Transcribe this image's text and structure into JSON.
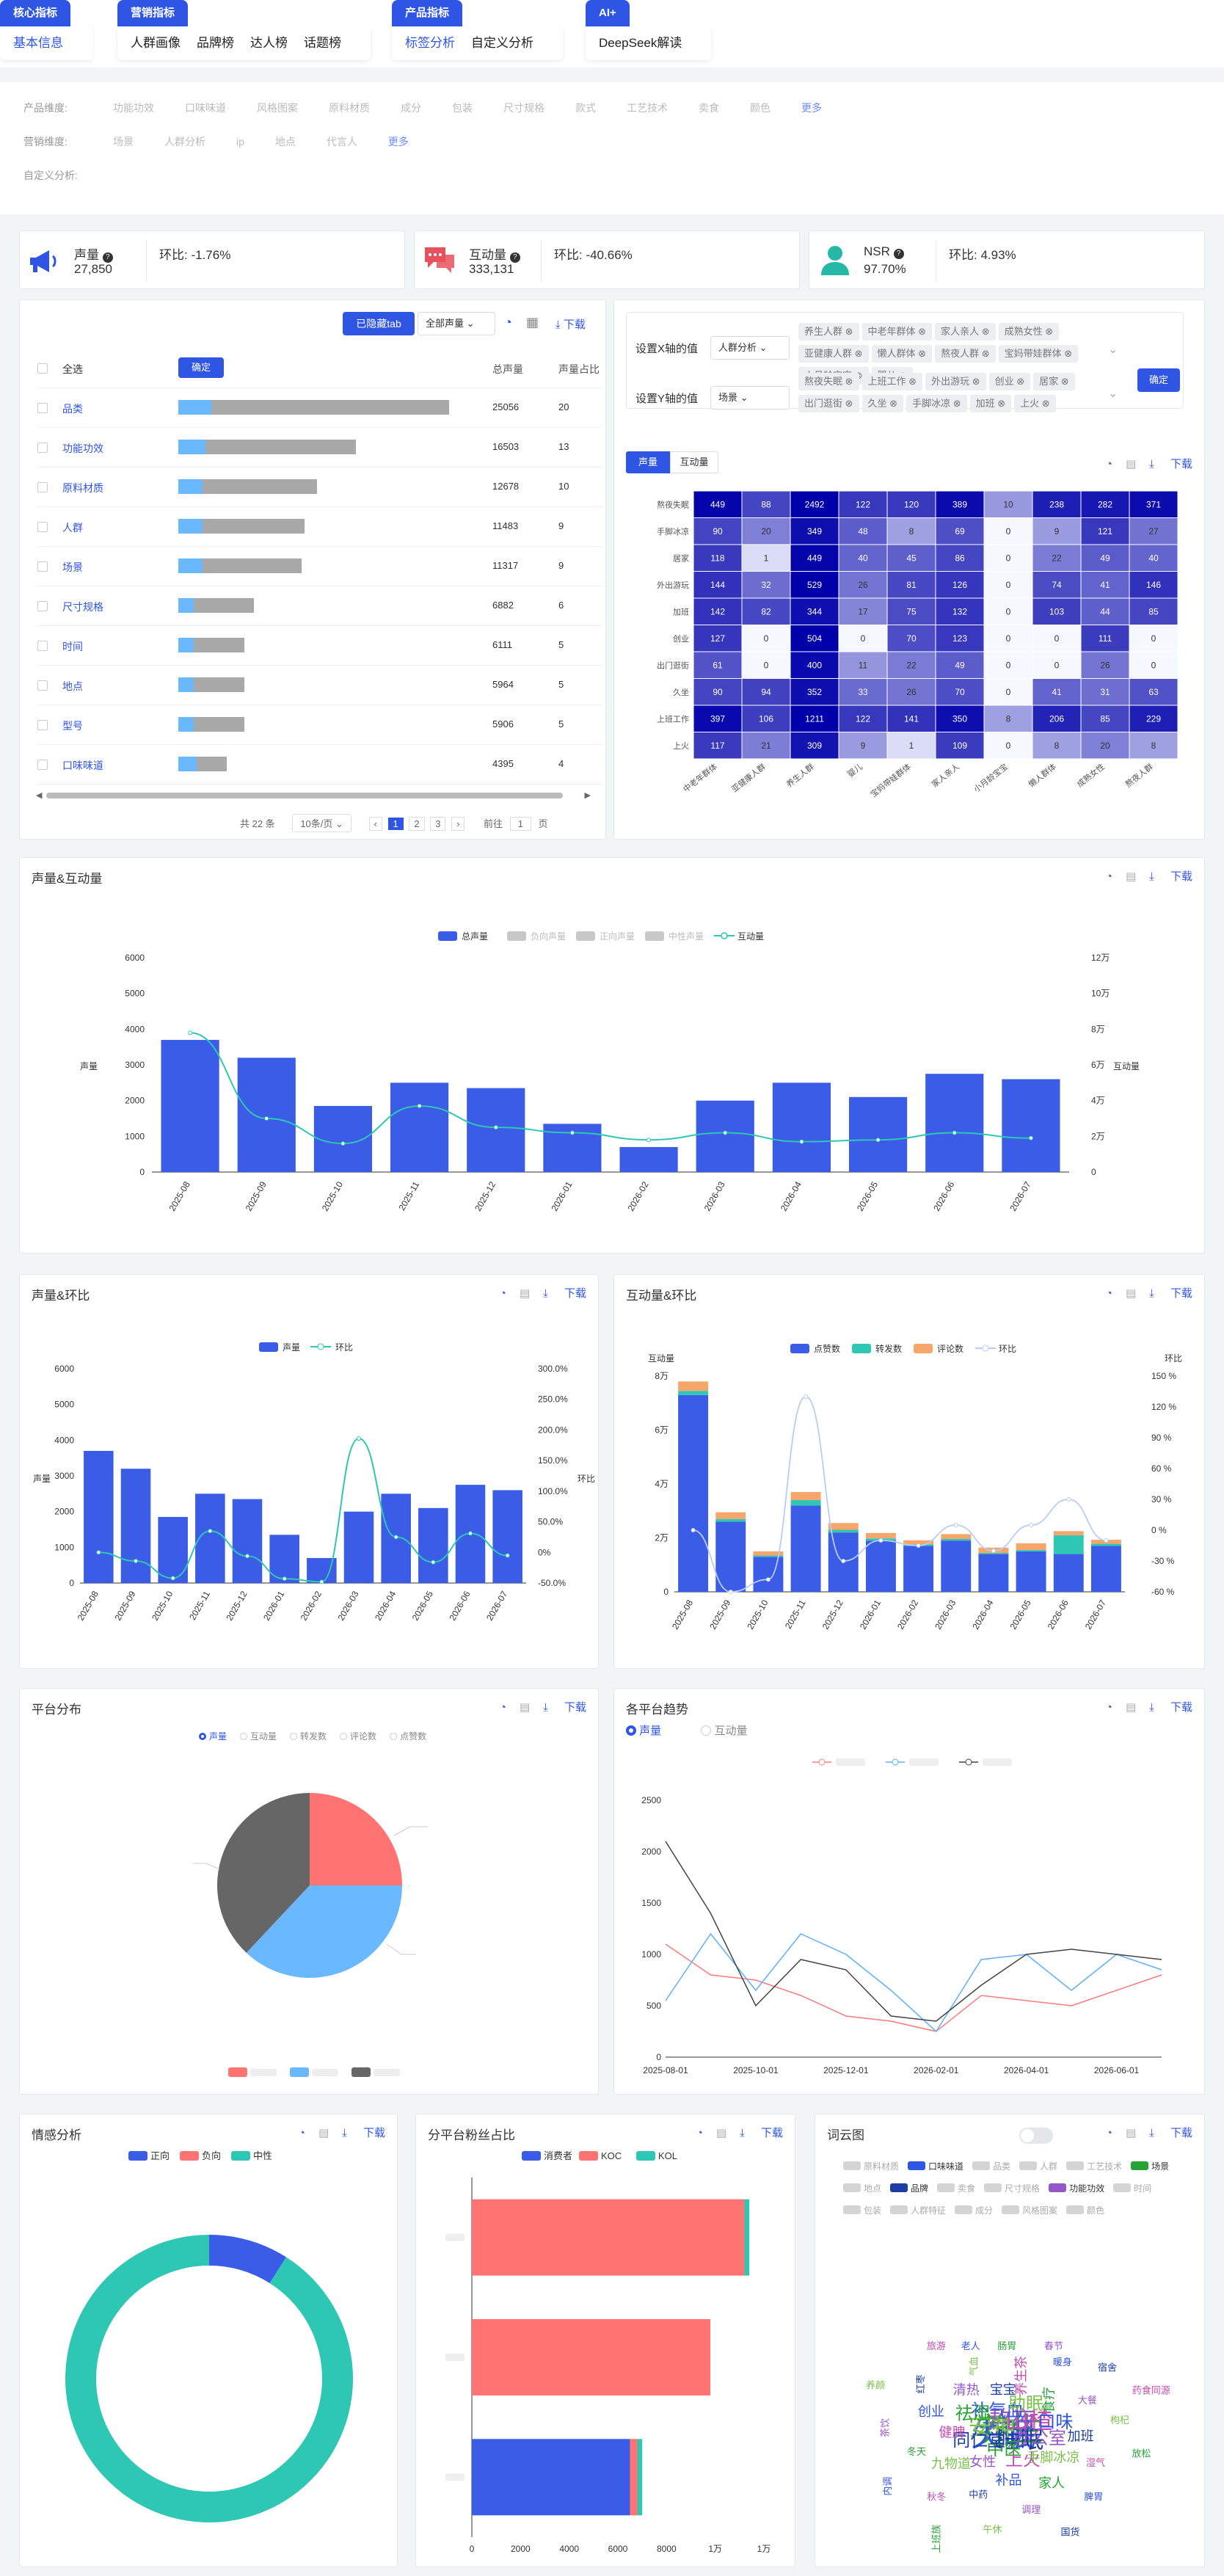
{
  "nav": {
    "groups": [
      {
        "label": "核心指标",
        "items": [
          "基本信息"
        ],
        "active": 0
      },
      {
        "label": "营销指标",
        "items": [
          "人群画像",
          "品牌榜",
          "达人榜",
          "话题榜"
        ],
        "active": -1
      },
      {
        "label": "产品指标",
        "items": [
          "标签分析",
          "自定义分析"
        ],
        "active": 0
      },
      {
        "label": "AI+",
        "items": [
          "DeepSeek解读"
        ],
        "active": -1
      }
    ]
  },
  "filters": {
    "product_label": "产品维度:",
    "product_items": [
      "功能功效",
      "口味味道",
      "风格图案",
      "原料材质",
      "成分",
      "包装",
      "尺寸规格",
      "款式",
      "工艺技术",
      "卖食",
      "颜色"
    ],
    "marketing_label": "营销维度:",
    "marketing_items": [
      "场景",
      "人群分析",
      "ip",
      "地点",
      "代言人"
    ],
    "custom_label": "自定义分析:",
    "more": "更多"
  },
  "kpis": [
    {
      "label": "声量",
      "value": "27,850",
      "mom": "环比: -1.76%",
      "icon": "megaphone-icon"
    },
    {
      "label": "互动量",
      "value": "333,131",
      "mom": "环比: -40.66%",
      "icon": "chat-bubble-icon"
    },
    {
      "label": "NSR",
      "value": "97.70%",
      "mom": "环比: 4.93%",
      "icon": "person-icon"
    }
  ],
  "toolbar": {
    "hidden_tab": "已隐藏tab",
    "all_volume": "全部声量",
    "download": "下载",
    "confirm": "确定"
  },
  "table": {
    "headers": {
      "select_all": "全选",
      "volume": "总声量",
      "share": "声量占比"
    },
    "rows": [
      {
        "name": "品类",
        "volume": "25056",
        "share": "20",
        "blue": 0.11,
        "grey": 0.9
      },
      {
        "name": "功能功效",
        "volume": "16503",
        "share": "13",
        "blue": 0.09,
        "grey": 0.59
      },
      {
        "name": "原料材质",
        "volume": "12678",
        "share": "10",
        "blue": 0.08,
        "grey": 0.46
      },
      {
        "name": "人群",
        "volume": "11483",
        "share": "9",
        "blue": 0.08,
        "grey": 0.42
      },
      {
        "name": "场景",
        "volume": "11317",
        "share": "9",
        "blue": 0.08,
        "grey": 0.41
      },
      {
        "name": "尺寸规格",
        "volume": "6882",
        "share": "6",
        "blue": 0.05,
        "grey": 0.25
      },
      {
        "name": "时间",
        "volume": "6111",
        "share": "5",
        "blue": 0.05,
        "grey": 0.22
      },
      {
        "name": "地点",
        "volume": "5964",
        "share": "5",
        "blue": 0.05,
        "grey": 0.22
      },
      {
        "name": "型号",
        "volume": "5906",
        "share": "5",
        "blue": 0.05,
        "grey": 0.22
      },
      {
        "name": "口味味道",
        "volume": "4395",
        "share": "4",
        "blue": 0.06,
        "grey": 0.16
      }
    ],
    "pagination": {
      "total": "共 22 条",
      "per_page": "10条/页",
      "pages": [
        "1",
        "2",
        "3"
      ],
      "goto": "前往",
      "goto_val": "1",
      "page_unit": "页"
    }
  },
  "axis_setup": {
    "x_label": "设置X轴的值",
    "x_select": "人群分析",
    "x_tags": [
      "养生人群",
      "中老年群体",
      "家人亲人",
      "成熟女性",
      "亚健康人群",
      "懒人群体",
      "熬夜人群",
      "宝妈带娃群体",
      "小月龄宝宝",
      "婴儿"
    ],
    "y_label": "设置Y轴的值",
    "y_select": "场景",
    "y_tags": [
      "熬夜失眠",
      "上班工作",
      "外出游玩",
      "创业",
      "居家",
      "出门逛街",
      "久坐",
      "手脚冰凉",
      "加班",
      "上火"
    ],
    "tabs": [
      "声量",
      "互动量"
    ]
  },
  "heatmap": {
    "rows": [
      "熬夜失眠",
      "手脚冰凉",
      "居家",
      "外出游玩",
      "加班",
      "创业",
      "出门逛街",
      "久坐",
      "上班工作",
      "上火"
    ],
    "cols": [
      "中老年群体",
      "亚健康人群",
      "养生人群",
      "婴儿",
      "宝妈带娃群体",
      "家人亲人",
      "小月龄宝宝",
      "懒人群体",
      "成熟女性",
      "熬夜人群"
    ],
    "values": [
      [
        449,
        88,
        2492,
        122,
        120,
        389,
        10,
        238,
        282,
        371
      ],
      [
        90,
        20,
        349,
        48,
        8,
        69,
        0,
        9,
        121,
        27
      ],
      [
        118,
        1,
        449,
        40,
        45,
        86,
        0,
        22,
        49,
        40
      ],
      [
        144,
        32,
        529,
        26,
        81,
        126,
        0,
        74,
        41,
        146
      ],
      [
        142,
        82,
        344,
        17,
        75,
        132,
        0,
        103,
        44,
        85
      ],
      [
        127,
        0,
        504,
        0,
        70,
        123,
        0,
        0,
        111,
        0
      ],
      [
        61,
        0,
        400,
        11,
        22,
        49,
        0,
        0,
        26,
        0
      ],
      [
        90,
        94,
        352,
        33,
        26,
        70,
        0,
        41,
        31,
        63
      ],
      [
        397,
        106,
        1211,
        122,
        141,
        350,
        8,
        206,
        85,
        229
      ],
      [
        117,
        21,
        309,
        9,
        1,
        109,
        0,
        8,
        20,
        8
      ]
    ]
  },
  "volume_interaction": {
    "title": "声量&互动量",
    "legend": [
      "总声量",
      "负向声量",
      "正向声量",
      "中性声量",
      "互动量"
    ],
    "ylabel_left": "声量",
    "ylabel_right": "互动量",
    "y_left_ticks": [
      "0",
      "1000",
      "2000",
      "3000",
      "4000",
      "5000",
      "6000"
    ],
    "y_right_ticks": [
      "0",
      "2万",
      "4万",
      "6万",
      "8万",
      "10万",
      "12万"
    ]
  },
  "volume_mom": {
    "title": "声量&环比",
    "legend": [
      "声量",
      "环比"
    ],
    "ylabel_left": "声量",
    "ylabel_right": "环比",
    "y_left_ticks": [
      "0",
      "1000",
      "2000",
      "3000",
      "4000",
      "5000",
      "6000"
    ],
    "y_right_ticks": [
      "-50.0%",
      "0%",
      "50.0%",
      "100.0%",
      "150.0%",
      "200.0%",
      "250.0%",
      "300.0%"
    ]
  },
  "interaction_mom": {
    "title": "互动量&环比",
    "legend": [
      "点赞数",
      "转发数",
      "评论数",
      "环比"
    ],
    "ylabel_left": "互动量",
    "ylabel_right": "环比",
    "y_left_ticks": [
      "0",
      "2万",
      "4万",
      "6万",
      "8万"
    ],
    "y_right_ticks": [
      "-60 %",
      "-30 %",
      "0 %",
      "30 %",
      "60 %",
      "90 %",
      "120 %",
      "150 %"
    ]
  },
  "platform_dist": {
    "title": "平台分布",
    "radios": [
      "声量",
      "互动量",
      "转发数",
      "评论数",
      "点赞数"
    ]
  },
  "platform_trend": {
    "title": "各平台趋势",
    "radios": [
      "声量",
      "互动量"
    ],
    "y_ticks": [
      "0",
      "500",
      "1000",
      "1500",
      "2000",
      "2500"
    ],
    "x_ticks": [
      "2025-08-01",
      "2025-10-01",
      "2025-12-01",
      "2026-02-01",
      "2026-04-01",
      "2026-06-01"
    ]
  },
  "sentiment": {
    "title": "情感分析",
    "legend": [
      "正向",
      "负向",
      "中性"
    ]
  },
  "fans": {
    "title": "分平台粉丝占比",
    "legend": [
      "消费者",
      "KOC",
      "KOL"
    ],
    "x_ticks": [
      "0",
      "2000",
      "4000",
      "6000",
      "8000",
      "1万",
      "1万"
    ]
  },
  "wordcloud": {
    "title": "词云图",
    "legend": [
      "原料材质",
      "口味味道",
      "品类",
      "人群",
      "工艺技术",
      "场景",
      "地点",
      "品牌",
      "卖食",
      "尺寸规格",
      "功能功效",
      "时间",
      "包装",
      "人群特征",
      "成分",
      "风格图案",
      "颜色"
    ],
    "words": [
      "养生",
      "失眠",
      "熬夜",
      "睡眠",
      "安神",
      "山楂",
      "中医",
      "补气血",
      "办公室",
      "同仁堂",
      "助眠",
      "上火",
      "祛湿",
      "口味",
      "女性",
      "宝宝",
      "手脚冰凉",
      "健脾",
      "食疗",
      "补品",
      "清热",
      "加班",
      "九物道",
      "养生茶",
      "家人",
      "创业",
      "大餐",
      "中药",
      "气血",
      "湿气",
      "冬天",
      "暖身",
      "调理",
      "红枣",
      "枸杞",
      "秋冬",
      "肠胃",
      "脾胃",
      "茶饮",
      "宿舍",
      "午休",
      "旅游",
      "放松",
      "内调",
      "春节",
      "国货",
      "养颜",
      "药食同源",
      "上班族",
      "老人"
    ]
  },
  "chart_data": [
    {
      "type": "bar",
      "title": "声量&互动量",
      "categories": [
        "2025-08",
        "2025-09",
        "2025-10",
        "2025-11",
        "2025-12",
        "2026-01",
        "2026-02",
        "2026-03",
        "2026-04",
        "2026-05",
        "2026-06",
        "2026-07"
      ],
      "series": [
        {
          "name": "总声量",
          "values": [
            3700,
            3200,
            1850,
            2500,
            2350,
            1350,
            700,
            2000,
            2500,
            2100,
            2750,
            2600
          ]
        },
        {
          "name": "互动量",
          "values": [
            78000,
            30000,
            16000,
            37000,
            25000,
            22000,
            18000,
            22000,
            17000,
            18000,
            22000,
            19000
          ]
        }
      ],
      "ylim": [
        0,
        6000
      ],
      "y2lim": [
        0,
        120000
      ]
    },
    {
      "type": "bar",
      "title": "声量&环比",
      "categories": [
        "2025-08",
        "2025-09",
        "2025-10",
        "2025-11",
        "2025-12",
        "2026-01",
        "2026-02",
        "2026-03",
        "2026-04",
        "2026-05",
        "2026-06",
        "2026-07"
      ],
      "series": [
        {
          "name": "声量",
          "values": [
            3700,
            3200,
            1850,
            2500,
            2350,
            1350,
            700,
            2000,
            2500,
            2100,
            2750,
            2600
          ]
        },
        {
          "name": "环比",
          "values": [
            0,
            -14,
            -42,
            35,
            -6,
            -43,
            -48,
            186,
            25,
            -16,
            31,
            -5
          ]
        }
      ],
      "ylim": [
        0,
        6000
      ],
      "y2lim": [
        -50,
        300
      ]
    },
    {
      "type": "bar",
      "title": "互动量&环比",
      "categories": [
        "2025-08",
        "2025-09",
        "2025-10",
        "2025-11",
        "2025-12",
        "2026-01",
        "2026-02",
        "2026-03",
        "2026-04",
        "2026-05",
        "2026-06",
        "2026-07"
      ],
      "series": [
        {
          "name": "点赞数",
          "values": [
            73000,
            26000,
            13000,
            32000,
            22000,
            19000,
            17000,
            19000,
            14000,
            15000,
            14000,
            17000
          ]
        },
        {
          "name": "转发数",
          "values": [
            1500,
            1000,
            500,
            2000,
            1000,
            800,
            600,
            600,
            400,
            500,
            7000,
            800
          ]
        },
        {
          "name": "评论数",
          "values": [
            3500,
            2500,
            1500,
            3000,
            2500,
            2000,
            1500,
            1800,
            2000,
            2500,
            1500,
            1500
          ]
        },
        {
          "name": "环比",
          "values": [
            0,
            -60,
            -48,
            130,
            -30,
            -10,
            -15,
            5,
            -20,
            5,
            30,
            -10
          ]
        }
      ],
      "ylim": [
        0,
        80000
      ],
      "y2lim": [
        -60,
        150
      ]
    },
    {
      "type": "pie",
      "title": "平台分布",
      "values": [
        25,
        37,
        38
      ],
      "colors": [
        "#ff7373",
        "#6ab8ff",
        "#666666"
      ]
    },
    {
      "type": "line",
      "title": "各平台趋势",
      "x": [
        "2025-08",
        "2025-09",
        "2025-10",
        "2025-11",
        "2025-12",
        "2026-01",
        "2026-02",
        "2026-03",
        "2026-04",
        "2026-05",
        "2026-06",
        "2026-07"
      ],
      "series": [
        {
          "values": [
            1100,
            800,
            750,
            600,
            400,
            350,
            250,
            600,
            550,
            500,
            650,
            800
          ]
        },
        {
          "values": [
            550,
            1200,
            650,
            1200,
            1000,
            650,
            250,
            950,
            1000,
            650,
            1000,
            850
          ]
        },
        {
          "values": [
            2100,
            1400,
            500,
            950,
            850,
            400,
            350,
            700,
            1000,
            1050,
            1000,
            950
          ]
        }
      ],
      "ylim": [
        0,
        2500
      ],
      "colors": [
        "#ff7b7b",
        "#5bb0ff",
        "#444444"
      ]
    },
    {
      "type": "pie",
      "title": "情感分析",
      "categories": [
        "正向",
        "负向",
        "中性"
      ],
      "values": [
        9,
        0,
        91
      ]
    },
    {
      "type": "bar",
      "title": "分平台粉丝占比",
      "orientation": "horizontal",
      "categories": [
        "",
        "",
        ""
      ],
      "series": [
        {
          "name": "消费者",
          "values": [
            0,
            0,
            6500
          ]
        },
        {
          "name": "KOC",
          "values": [
            11200,
            9800,
            300
          ]
        },
        {
          "name": "KOL",
          "values": [
            200,
            0,
            200
          ]
        }
      ],
      "xlim": [
        0,
        12000
      ]
    }
  ]
}
